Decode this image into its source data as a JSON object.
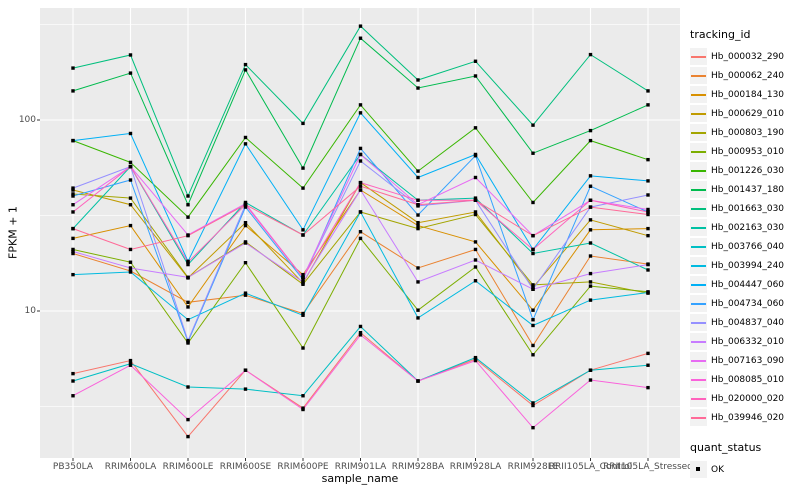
{
  "figure": {
    "panel_bg": "#EBEBEB",
    "grid_color": "#FFFFFF",
    "tick_text_color": "#4D4D4D",
    "point_color": "#000000"
  },
  "axes": {
    "y_title": "FPKM + 1",
    "x_title": "sample_name",
    "y_tick_labels": [
      "100",
      "10"
    ],
    "y_tick_values": [
      100,
      10
    ],
    "y_minor_values": [
      316,
      31.6,
      3.16
    ]
  },
  "legend": {
    "color_title": "tracking_id",
    "shape_title": "quant_status",
    "shape_items": [
      {
        "label": "OK"
      }
    ]
  },
  "chart_data": {
    "type": "line",
    "title": "",
    "xlabel": "sample_name",
    "ylabel": "FPKM + 1",
    "y_scale": "log10",
    "ylim": [
      1.7,
      390
    ],
    "grid": true,
    "legend_position": "right",
    "point_shape": "filled-square",
    "categories": [
      "PB350LA",
      "RRIM600LA",
      "RRIM600LE",
      "RRIM600SE",
      "RRIM600PE",
      "RRIM901LA",
      "RRIM928BA",
      "RRIM928LA",
      "RRIM928LE",
      "RRII105LA_Control",
      "RRII105LA_Stressed"
    ],
    "series": [
      {
        "name": "Hb_000032_290",
        "color": "#F8766D",
        "values": [
          4.7,
          5.5,
          2.2,
          4.9,
          3.1,
          7.7,
          4.3,
          5.6,
          3.2,
          4.9,
          6.0
        ]
      },
      {
        "name": "Hb_000062_240",
        "color": "#EA8331",
        "values": [
          20,
          16.2,
          11.1,
          12.1,
          9.7,
          26,
          16.8,
          21,
          6.6,
          19.4,
          17.6
        ]
      },
      {
        "name": "Hb_000184_130",
        "color": "#D89000",
        "values": [
          24,
          28,
          10.5,
          28,
          15.5,
          43,
          28,
          23,
          10.1,
          26.6,
          27
        ]
      },
      {
        "name": "Hb_000629_010",
        "color": "#C09B00",
        "values": [
          43,
          36,
          14.9,
          29,
          14,
          47,
          29,
          33,
          13.3,
          30,
          24.8
        ]
      },
      {
        "name": "Hb_000803_190",
        "color": "#A3A500",
        "values": [
          41,
          39,
          15,
          23,
          13.8,
          33,
          27,
          32,
          13.7,
          14.2,
          12.4
        ]
      },
      {
        "name": "Hb_000953_010",
        "color": "#7CAE00",
        "values": [
          21,
          18,
          6.8,
          17.9,
          6.4,
          24,
          10.1,
          17,
          5.9,
          13.5,
          12.6
        ]
      },
      {
        "name": "Hb_001226_030",
        "color": "#39B600",
        "values": [
          78,
          60,
          31,
          81,
          44,
          120,
          54,
          91,
          37,
          78,
          62
        ]
      },
      {
        "name": "Hb_001437_180",
        "color": "#00BB4E",
        "values": [
          142,
          176,
          36,
          183,
          56,
          268,
          147,
          170,
          67,
          88,
          120
        ]
      },
      {
        "name": "Hb_001663_030",
        "color": "#00BF7D",
        "values": [
          187,
          219,
          40,
          195,
          96,
          310,
          162,
          203,
          94,
          220,
          142
        ]
      },
      {
        "name": "Hb_002163_030",
        "color": "#00C1A3",
        "values": [
          27,
          57,
          17.5,
          37,
          25,
          66,
          38,
          39,
          20,
          22.7,
          16.4
        ]
      },
      {
        "name": "Hb_003766_040",
        "color": "#00BFC4",
        "values": [
          4.3,
          5.3,
          4.0,
          3.9,
          3.6,
          8.3,
          4.3,
          5.7,
          3.3,
          4.9,
          5.2
        ]
      },
      {
        "name": "Hb_003994_240",
        "color": "#00BAE0",
        "values": [
          15.5,
          16,
          9.0,
          12.4,
          9.5,
          33,
          9.2,
          14.4,
          8.4,
          11.4,
          12.5
        ]
      },
      {
        "name": "Hb_004447_060",
        "color": "#00B0F6",
        "values": [
          78,
          85,
          18.2,
          75,
          26.6,
          109,
          50,
          66,
          21,
          51,
          48
        ]
      },
      {
        "name": "Hb_004734_060",
        "color": "#35A2FF",
        "values": [
          40,
          48.5,
          6.9,
          35,
          14.6,
          71,
          31.8,
          65,
          9.0,
          45,
          33
        ]
      },
      {
        "name": "Hb_004837_040",
        "color": "#9590FF",
        "values": [
          44,
          57,
          7.0,
          36,
          15,
          61,
          35.5,
          38,
          13.0,
          35,
          40.5
        ]
      },
      {
        "name": "Hb_006332_010",
        "color": "#C77CFF",
        "values": [
          20.5,
          16.8,
          15,
          22.7,
          14.2,
          43,
          14.2,
          18.5,
          13.0,
          15.7,
          17.5
        ]
      },
      {
        "name": "Hb_007163_090",
        "color": "#E76BF3",
        "values": [
          36,
          57,
          25,
          36.5,
          15,
          66,
          36,
          50,
          24.8,
          38,
          34
        ]
      },
      {
        "name": "Hb_008085_010",
        "color": "#FA62DB",
        "values": [
          3.6,
          5.2,
          2.7,
          4.9,
          3.05,
          7.5,
          4.3,
          5.5,
          2.45,
          4.35,
          3.97
        ]
      },
      {
        "name": "Hb_020000_020",
        "color": "#FF62BC",
        "values": [
          33,
          57,
          18,
          36,
          15,
          47,
          38,
          38,
          21,
          38,
          33
        ]
      },
      {
        "name": "Hb_039946_020",
        "color": "#FF6A98",
        "values": [
          27,
          21,
          24.8,
          36,
          25,
          45,
          36,
          38,
          24.8,
          35,
          32
        ]
      }
    ]
  }
}
